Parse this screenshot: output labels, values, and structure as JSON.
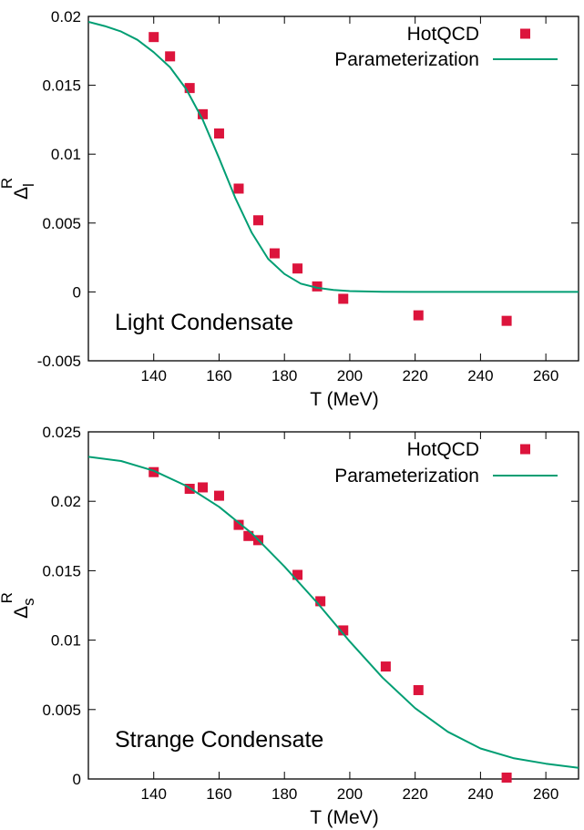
{
  "chart_data": [
    {
      "type": "scatter",
      "xlabel": "T (MeV)",
      "ylabel": {
        "main": "Δ",
        "sub": "l",
        "sup": "R"
      },
      "annotation": "Light Condensate",
      "xlim": [
        120,
        270
      ],
      "ylim": [
        -0.005,
        0.02
      ],
      "xticks": [
        140,
        160,
        180,
        200,
        220,
        240,
        260
      ],
      "xtick_labels": [
        "140",
        "160",
        "180",
        "200",
        "220",
        "240",
        "260"
      ],
      "yticks": [
        -0.005,
        0,
        0.005,
        0.01,
        0.015,
        0.02
      ],
      "ytick_labels": [
        "-0.005",
        "0",
        "0.005",
        "0.01",
        "0.015",
        "0.02"
      ],
      "grid": false,
      "legend_position": "top-right",
      "series": [
        {
          "name": "HotQCD",
          "kind": "points",
          "marker": "square",
          "color": "#dc143c",
          "x": [
            140,
            145,
            151,
            155,
            160,
            166,
            172,
            177,
            184,
            190,
            198,
            221,
            248
          ],
          "y": [
            0.0185,
            0.0171,
            0.0148,
            0.0129,
            0.0115,
            0.0075,
            0.0052,
            0.0028,
            0.0017,
            0.0004,
            -0.0005,
            -0.0017,
            -0.0021
          ]
        },
        {
          "name": "Parameterization",
          "kind": "line",
          "color": "#009e73",
          "x": [
            120,
            125,
            130,
            135,
            140,
            145,
            150,
            155,
            160,
            165,
            170,
            175,
            180,
            185,
            190,
            195,
            200,
            210,
            220,
            240,
            270
          ],
          "y": [
            0.0196,
            0.0193,
            0.0189,
            0.0183,
            0.0174,
            0.0163,
            0.0147,
            0.0125,
            0.0097,
            0.0068,
            0.0043,
            0.0024,
            0.0013,
            0.0006,
            0.0003,
            0.00014,
            6e-05,
            1e-05,
            0.0,
            0.0,
            0.0
          ]
        }
      ]
    },
    {
      "type": "scatter",
      "xlabel": "T (MeV)",
      "ylabel": {
        "main": "Δ",
        "sub": "s",
        "sup": "R"
      },
      "annotation": "Strange Condensate",
      "xlim": [
        120,
        270
      ],
      "ylim": [
        0,
        0.025
      ],
      "xticks": [
        140,
        160,
        180,
        200,
        220,
        240,
        260
      ],
      "xtick_labels": [
        "140",
        "160",
        "180",
        "200",
        "220",
        "240",
        "260"
      ],
      "yticks": [
        0,
        0.005,
        0.01,
        0.015,
        0.02,
        0.025
      ],
      "ytick_labels": [
        "0",
        "0.005",
        "0.01",
        "0.015",
        "0.02",
        "0.025"
      ],
      "grid": false,
      "legend_position": "top-right",
      "series": [
        {
          "name": "HotQCD",
          "kind": "points",
          "marker": "square",
          "color": "#dc143c",
          "x": [
            140,
            151,
            155,
            160,
            166,
            169,
            172,
            184,
            191,
            198,
            211,
            221,
            248
          ],
          "y": [
            0.0221,
            0.0209,
            0.021,
            0.0204,
            0.0183,
            0.0175,
            0.0172,
            0.0147,
            0.0128,
            0.0107,
            0.0081,
            0.0064,
            0.0001
          ]
        },
        {
          "name": "Parameterization",
          "kind": "line",
          "color": "#009e73",
          "x": [
            120,
            130,
            140,
            150,
            160,
            170,
            180,
            190,
            200,
            210,
            220,
            230,
            240,
            250,
            260,
            270
          ],
          "y": [
            0.0232,
            0.0229,
            0.0222,
            0.0211,
            0.0196,
            0.0177,
            0.0153,
            0.0127,
            0.0099,
            0.0073,
            0.0051,
            0.0034,
            0.0022,
            0.0015,
            0.0011,
            0.0008
          ]
        }
      ]
    }
  ]
}
